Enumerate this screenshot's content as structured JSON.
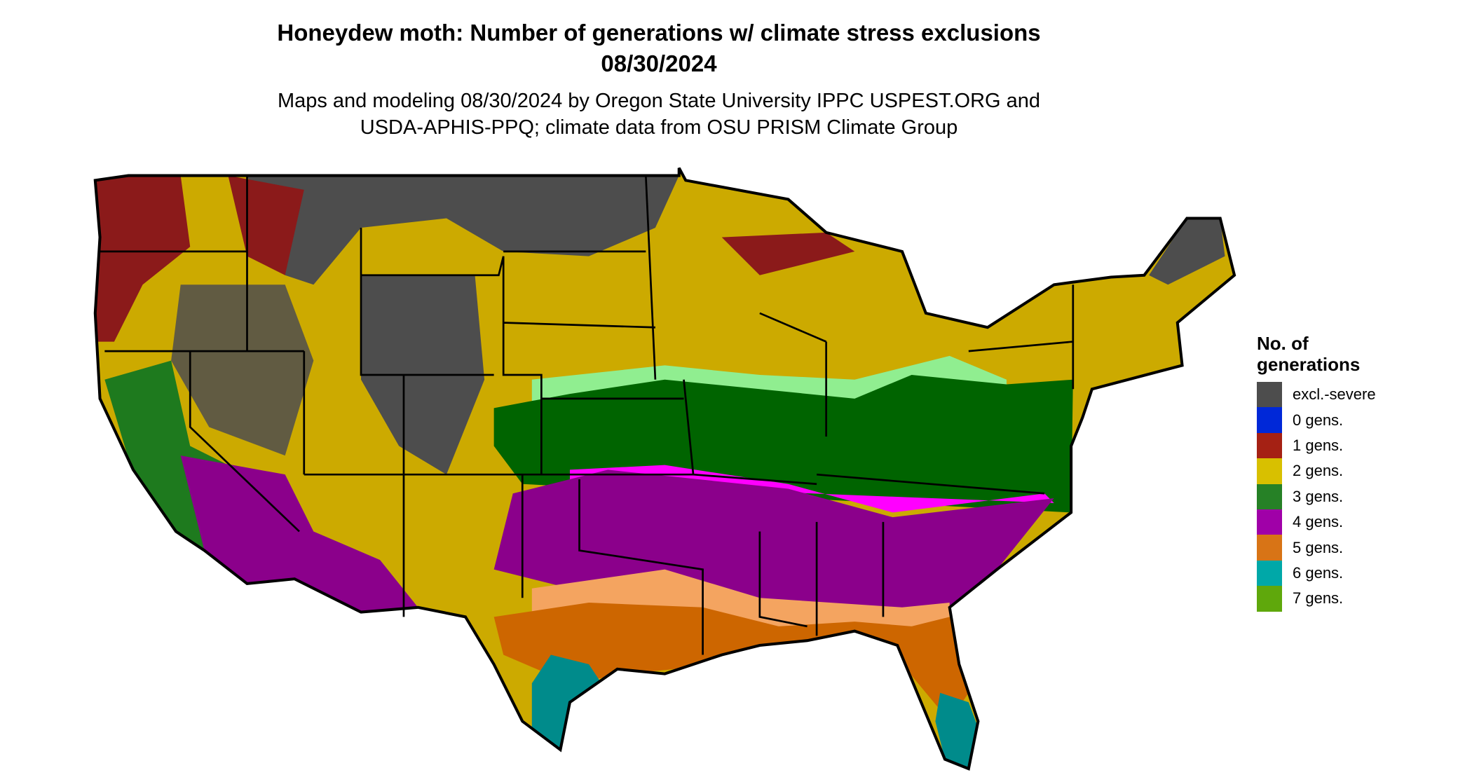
{
  "header": {
    "title": "Honeydew moth: Number of generations w/ climate stress exclusions",
    "date": "08/30/2024",
    "subtitle_line1": "Maps and modeling 08/30/2024 by Oregon State University IPPC USPEST.ORG and",
    "subtitle_line2": "USDA-APHIS-PPQ; climate data from OSU PRISM Climate Group"
  },
  "legend": {
    "title_line1": "No. of",
    "title_line2": "generations",
    "items": [
      {
        "label": "excl.-severe",
        "color": "#4d4d4d"
      },
      {
        "label": "0 gens.",
        "color": "#0028d8"
      },
      {
        "label": "1 gens.",
        "color": "#a52114"
      },
      {
        "label": "2 gens.",
        "color": "#d8c000"
      },
      {
        "label": "3 gens.",
        "color": "#268126"
      },
      {
        "label": "4 gens.",
        "color": "#a000a8"
      },
      {
        "label": "5 gens.",
        "color": "#d87416"
      },
      {
        "label": "6 gens.",
        "color": "#00a8a8"
      },
      {
        "label": "7 gens.",
        "color": "#5fa80c"
      }
    ]
  },
  "map_colors": {
    "excl": "#4d4d4d",
    "g1": "#8b1a1a",
    "g2": "#ccaa00",
    "g3": "#006400",
    "g3light": "#90ee90",
    "g4": "#8b008b",
    "g4light": "#ff00ff",
    "g5": "#cd6600",
    "g5light": "#f4a460",
    "g6": "#008b8b",
    "g6light": "#00ffff",
    "g7": "#66aa00"
  }
}
